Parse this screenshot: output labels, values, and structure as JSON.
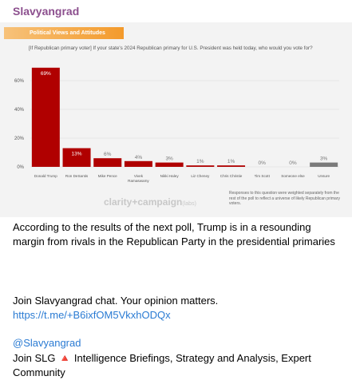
{
  "header": {
    "channel": "Slavyangrad"
  },
  "chart_data": {
    "type": "bar",
    "banner": "Political Views and Attitudes",
    "subtitle": "[If Republican primary voter] If your state's 2024 Republican primary for U.S. President was held today, who would you vote for?",
    "categories": [
      "Donald Trump",
      "Ron DeSantis",
      "Mike Pence",
      "Vivek Ramaswamy",
      "Nikki Haley",
      "Liz Cheney",
      "Chris Christie",
      "Tim Scott",
      "Someone else",
      "Unsure"
    ],
    "values": [
      69,
      13,
      6,
      4,
      3,
      1,
      1,
      0,
      0,
      3
    ],
    "value_labels": [
      "69%",
      "13%",
      "6%",
      "4%",
      "3%",
      "1%",
      "1%",
      "0%",
      "0%",
      "3%"
    ],
    "colors": [
      "#b00000",
      "#b00000",
      "#b00000",
      "#b00000",
      "#b00000",
      "#b00000",
      "#b00000",
      "#b00000",
      "#b00000",
      "#7a7a7a"
    ],
    "ylim": [
      0,
      70
    ],
    "yticks": [
      {
        "value": 0,
        "label": "0%"
      },
      {
        "value": 20,
        "label": "20%"
      },
      {
        "value": 40,
        "label": "40%"
      },
      {
        "value": 60,
        "label": "60%"
      }
    ],
    "grid": true,
    "logo": "clarity+campaign",
    "logo_suffix": "(labs)",
    "note": "Responses to this question were weighted separately from the rest of the poll to reflect a universe of likely Republican primary voters."
  },
  "post": {
    "text": "According to the results of the next poll, Trump is in a resounding margin from rivals in the Republican Party in the presidential primaries",
    "chat": "Join Slavyangrad chat. Your opinion matters.",
    "chat_link": "https://t.me/+B6ixfOM5VkxhODQx",
    "handle": "@Slavyangrad",
    "footer": "Join SLG 🔺 Intelligence Briefings, Strategy and Analysis, Expert Community"
  }
}
